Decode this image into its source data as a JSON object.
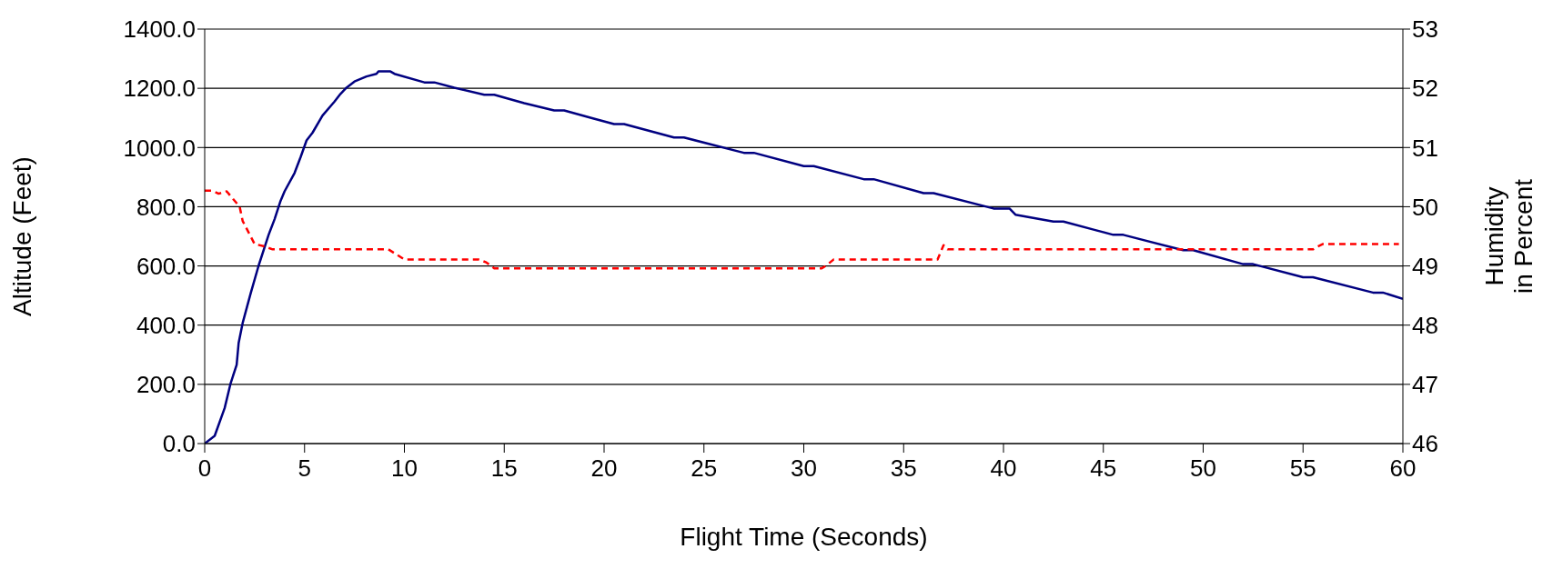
{
  "chart_data": {
    "type": "line",
    "xlabel": "Flight Time (Seconds)",
    "ylabel": "Altitude (Feet)",
    "y2label": "Humidity in Percent",
    "xlim": [
      0,
      60
    ],
    "xticks": [
      0,
      5,
      10,
      15,
      20,
      25,
      30,
      35,
      40,
      45,
      50,
      55,
      60
    ],
    "ylim": [
      0,
      1400
    ],
    "yticks": [
      {
        "value": 0,
        "label": "0.0"
      },
      {
        "value": 200,
        "label": "200.0"
      },
      {
        "value": 400,
        "label": "400.0"
      },
      {
        "value": 600,
        "label": "600.0"
      },
      {
        "value": 800,
        "label": "800.0"
      },
      {
        "value": 1000,
        "label": "1000.0"
      },
      {
        "value": 1200,
        "label": "1200.0"
      },
      {
        "value": 1400,
        "label": "1400.0"
      }
    ],
    "y2lim": [
      46,
      53
    ],
    "y2ticks": [
      46,
      47,
      48,
      49,
      50,
      51,
      52,
      53
    ],
    "grid": "y",
    "legend": false,
    "marker": "none",
    "series": [
      {
        "color": "#000080",
        "line_style": "solid",
        "x": [
          0,
          0.5,
          1,
          1.3,
          1.6,
          1.7,
          1.9,
          2.3,
          2.7,
          3.2,
          3.5,
          3.8,
          4,
          4.5,
          4.8,
          5.1,
          5.4,
          5.9,
          6.5,
          6.8,
          7.1,
          7.5,
          8.1,
          8.6,
          8.7,
          9.3,
          9.5,
          11,
          11.5,
          12.5,
          14,
          14.5,
          16,
          17.5,
          18,
          19.4,
          20.5,
          21,
          23.5,
          24,
          27,
          27.5,
          30,
          30.5,
          33,
          33.5,
          36,
          36.5,
          39.5,
          40.3,
          40.6,
          42.5,
          43,
          44.6,
          45.5,
          46,
          49,
          49.5,
          52,
          52.5,
          55,
          55.5,
          58.5,
          59,
          60
        ],
        "values": [
          0,
          26,
          120,
          204,
          266,
          340,
          407,
          507,
          601,
          705,
          758,
          820,
          852,
          914,
          967,
          1024,
          1050,
          1108,
          1155,
          1181,
          1202,
          1223,
          1240,
          1249,
          1257,
          1257,
          1249,
          1220,
          1220,
          1202,
          1178,
          1178,
          1150,
          1125,
          1125,
          1099,
          1079,
          1079,
          1034,
          1034,
          982,
          982,
          937,
          937,
          893,
          893,
          846,
          846,
          794,
          794,
          773,
          750,
          750,
          721,
          705,
          705,
          653,
          653,
          606,
          606,
          562,
          562,
          510,
          510,
          489
        ]
      },
      {
        "color": "#ff0000",
        "line_style": "dashed",
        "axis": "y2",
        "x": [
          0,
          0.4,
          0.7,
          1.1,
          1.75,
          1.9,
          2.5,
          3,
          3.4,
          9.2,
          10,
          13.7,
          14.1,
          14.5,
          30.9,
          31.1,
          31.5,
          36.7,
          37,
          37.2,
          55.5,
          55.7,
          56,
          59.8
        ],
        "values": [
          50.27,
          50.27,
          50.22,
          50.26,
          50,
          49.76,
          49.37,
          49.33,
          49.28,
          49.28,
          49.11,
          49.11,
          49.06,
          48.96,
          48.96,
          49,
          49.11,
          49.11,
          49.35,
          49.28,
          49.28,
          49.32,
          49.37,
          49.37
        ]
      }
    ]
  }
}
